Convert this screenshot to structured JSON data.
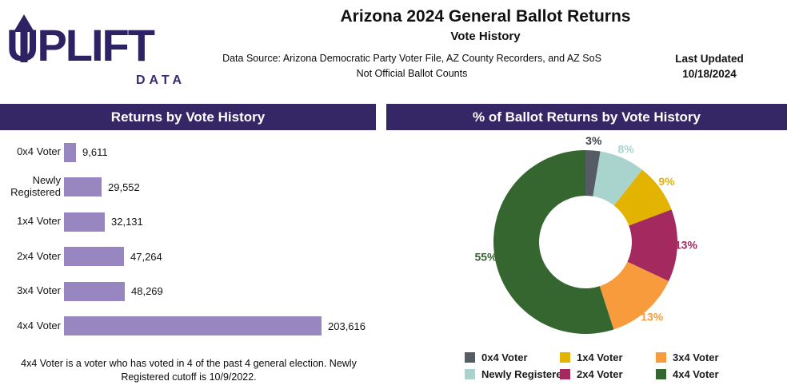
{
  "logo": {
    "brand": "UPLIFT",
    "sub": "DATA"
  },
  "header": {
    "title": "Arizona 2024 General Ballot Returns",
    "subtitle": "Vote History",
    "source_line1": "Data Source: Arizona Democratic Party Voter File, AZ County Recorders, and AZ SoS",
    "source_line2": "Not Official Ballot Counts",
    "last_updated_label": "Last Updated",
    "last_updated_date": "10/18/2024"
  },
  "panels": {
    "left_title": "Returns by Vote History",
    "right_title": "% of Ballot Returns by Vote History"
  },
  "footnote": "4x4 Voter is a voter who has voted in 4 of the past 4 general election. Newly Registered cutoff is 10/9/2022.",
  "colors": {
    "header_bar": "#352765",
    "logo_purple": "#2e2164",
    "logo_sub_purple": "#3b2a72",
    "bar_purple": "#9786c0"
  },
  "chart_data": [
    {
      "type": "bar",
      "orientation": "horizontal",
      "title": "Returns by Vote History",
      "categories": [
        "0x4 Voter",
        "Newly Registered",
        "1x4 Voter",
        "2x4 Voter",
        "3x4 Voter",
        "4x4 Voter"
      ],
      "values": [
        9611,
        29552,
        32131,
        47264,
        48269,
        203616
      ],
      "value_labels": [
        "9,611",
        "29,552",
        "32,131",
        "47,264",
        "48,269",
        "203,616"
      ],
      "bar_color": "#9786c0",
      "xlim": [
        0,
        210000
      ],
      "grid": false,
      "legend_position": "none"
    },
    {
      "type": "pie",
      "donut": true,
      "title": "% of Ballot Returns by Vote History",
      "categories": [
        "0x4 Voter",
        "Newly Registered",
        "1x4 Voter",
        "2x4 Voter",
        "3x4 Voter",
        "4x4 Voter"
      ],
      "values": [
        9611,
        29552,
        32131,
        47264,
        48269,
        203616
      ],
      "pct_labels": [
        "3%",
        "8%",
        "9%",
        "13%",
        "13%",
        "55%"
      ],
      "colors": [
        "#565c66",
        "#a9d4ce",
        "#e2b301",
        "#a3295f",
        "#f89b3c",
        "#35662f"
      ],
      "label_colors": [
        "#3e434b",
        "#a9d4ce",
        "#e2b301",
        "#a3295f",
        "#f89b3c",
        "#35662f"
      ],
      "start_angle_deg": 0,
      "direction": "clockwise",
      "legend_position": "bottom",
      "legend_row_order": [
        [
          0,
          2,
          4
        ],
        [
          1,
          3,
          5
        ]
      ]
    }
  ]
}
